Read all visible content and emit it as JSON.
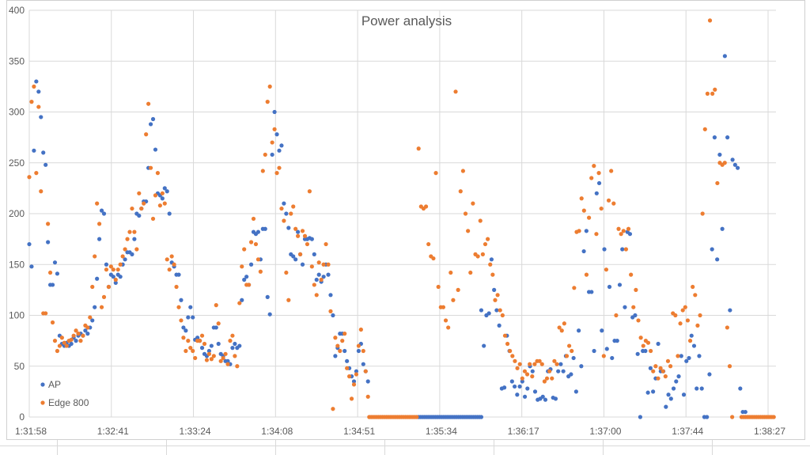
{
  "chart_data": {
    "type": "scatter",
    "title": "Power analysis",
    "xlabel": "",
    "ylabel": "",
    "ylim": [
      0,
      400
    ],
    "yticks": [
      0,
      50,
      100,
      150,
      200,
      250,
      300,
      350,
      400
    ],
    "x_unit": "seconds since 1:31:58",
    "xlim": [
      0,
      389
    ],
    "xtick_labels": [
      "1:31:58",
      "1:32:41",
      "1:33:24",
      "1:34:08",
      "1:34:51",
      "1:35:34",
      "1:36:17",
      "1:37:00",
      "1:37:44",
      "1:38:27"
    ],
    "grid": true,
    "legend_position": "bottom-left",
    "series": [
      {
        "name": "AP",
        "color": "#4472C4",
        "segments": [
          {
            "start": 0,
            "step": 1.23,
            "values": [
              170,
              148,
              262,
              330,
              320,
              295,
              260,
              248,
              172,
              130,
              130,
              152,
              141,
              80,
              72,
              70,
              73,
              70,
              72,
              78,
              75,
              80,
              82,
              80,
              85,
              82,
              88,
              95,
              108,
              136,
              175,
              203,
              200,
              150,
              128,
              140,
              138,
              132,
              140,
              138,
              150,
              155,
              162,
              162,
              160,
              175,
              200,
              198,
              205,
              212,
              212,
              245,
              288,
              293,
              263,
              220,
              218,
              215,
              225,
              222,
              200,
              152,
              148,
              140,
              140,
              115,
              88,
              85,
              98,
              108,
              98,
              76,
              78,
              75,
              68,
              62,
              60,
              65,
              70,
              88,
              88,
              72,
              62,
              60,
              55,
              55,
              52,
              68,
              72,
              68,
              70,
              115,
              135,
              138,
              130,
              150,
              182,
              180,
              182,
              155,
              185,
              185,
              118,
              101,
              258,
              300,
              278,
              262,
              267,
              210,
              200,
              186,
              160,
              158,
              155,
              182,
              160,
              150,
              175,
              175,
              176,
              175,
              160,
              135,
              140,
              133,
              138,
              150,
              140,
              120,
              100,
              60,
              68,
              82,
              82,
              65,
              55,
              48,
              40,
              35,
              45,
              65,
              72,
              52,
              45,
              35
            ]
          },
          {
            "start": 205,
            "step": 1,
            "values": [
              0,
              0,
              0,
              0,
              0,
              0,
              0,
              0,
              0,
              0,
              0,
              0,
              0,
              0,
              0,
              0,
              0,
              0,
              0,
              0,
              0,
              0,
              0,
              0,
              0,
              0,
              0,
              0,
              0,
              0,
              0,
              0,
              0,
              0
            ]
          },
          {
            "start": 238,
            "step": 1.35,
            "values": [
              105,
              70,
              100,
              102,
              155,
              125,
              105,
              90,
              28,
              29,
              80,
              65,
              35,
              30,
              22,
              30,
              35,
              20,
              28,
              50,
              45,
              25,
              17,
              18,
              20,
              17,
              45,
              47,
              19,
              18,
              45,
              52,
              45,
              60,
              40,
              42,
              58,
              25,
              85,
              50,
              163,
              183,
              123,
              123,
              65,
              220,
              230,
              85,
              165,
              67,
              128,
              58,
              75,
              75,
              130,
              165,
              108,
              182,
              180,
              98,
              100,
              62,
              0,
              65,
              65,
              24,
              48,
              25,
              38,
              72,
              45,
              45,
              10,
              22,
              18,
              28,
              35,
              40,
              60,
              22,
              55,
              58,
              80,
              70,
              28,
              60,
              28,
              0,
              0,
              42,
              165,
              275,
              155,
              258,
              185,
              355,
              275,
              105,
              253,
              248,
              245,
              28,
              5,
              5
            ]
          }
        ]
      },
      {
        "name": "Edge 800",
        "color": "#ED7D31",
        "segments": [
          {
            "start": 0,
            "step": 1.23,
            "values": [
              236,
              310,
              325,
              240,
              305,
              222,
              102,
              102,
              190,
              142,
              93,
              75,
              65,
              70,
              78,
              73,
              70,
              75,
              76,
              80,
              85,
              82,
              75,
              80,
              90,
              88,
              98,
              128,
              158,
              210,
              190,
              108,
              118,
              145,
              128,
              148,
              145,
              135,
              145,
              150,
              158,
              165,
              175,
              182,
              205,
              182,
              165,
              220,
              205,
              210,
              278,
              308,
              245,
              195,
              218,
              240,
              208,
              220,
              210,
              155,
              145,
              158,
              150,
              128,
              108,
              95,
              78,
              65,
              75,
              68,
              65,
              58,
              75,
              75,
              80,
              72,
              56,
              62,
              57,
              60,
              110,
              92,
              55,
              58,
              62,
              52,
              75,
              80,
              60,
              50,
              112,
              148,
              165,
              130,
              130,
              172,
              195,
              170,
              155,
              143,
              242,
              258,
              310,
              325,
              270,
              283,
              240,
              245,
              205,
              193,
              142,
              115,
              200,
              207,
              185,
              178,
              160,
              183,
              178,
              170,
              222,
              148,
              130,
              120,
              152,
              135,
              150,
              170,
              150,
              104,
              8,
              78,
              70,
              65,
              75,
              82,
              48,
              40,
              18,
              32,
              42,
              70,
              86,
              65,
              45,
              20
            ]
          },
          {
            "start": 179,
            "step": 1,
            "values": [
              0,
              0,
              0,
              0,
              0,
              0,
              0,
              0,
              0,
              0,
              0,
              0,
              0,
              0,
              0,
              0,
              0,
              0,
              0,
              0,
              0,
              0,
              0,
              0,
              0,
              0
            ]
          },
          {
            "start": 205,
            "step": 1.3,
            "values": [
              264,
              207,
              205,
              207,
              170,
              158,
              156,
              240,
              128,
              108,
              108,
              95,
              88,
              142,
              115,
              320,
              125,
              222,
              242,
              200,
              183,
              142,
              210,
              160,
              158,
              193,
              160,
              170,
              175,
              150,
              140,
              115,
              120,
              105,
              100,
              80,
              72,
              65,
              60,
              55,
              48,
              52,
              38,
              45,
              42,
              52,
              40,
              52,
              55,
              55,
              52,
              35,
              38,
              45,
              38,
              55,
              52,
              88,
              85,
              92,
              60,
              70,
              65,
              127,
              182,
              183,
              215,
              203,
              140,
              196,
              235,
              247,
              180,
              240,
              205,
              60,
              145,
              213,
              242,
              210,
              100,
              185,
              180,
              183,
              165,
              185,
              140,
              108,
              125,
              95,
              78,
              70,
              75,
              73,
              65,
              45,
              50,
              38,
              48,
              45,
              40,
              55,
              50,
              102,
              100,
              60,
              92,
              105,
              108,
              95,
              75,
              128,
              120,
              90,
              100,
              200,
              283,
              318,
              390,
              318,
              322,
              230,
              250,
              248,
              250,
              88,
              50,
              0
            ]
          },
          {
            "start": 375,
            "step": 1,
            "values": [
              0,
              0,
              0,
              0,
              0,
              0,
              0,
              0,
              0,
              0,
              0,
              0,
              0,
              0,
              0,
              0,
              0,
              0
            ]
          }
        ]
      }
    ]
  }
}
